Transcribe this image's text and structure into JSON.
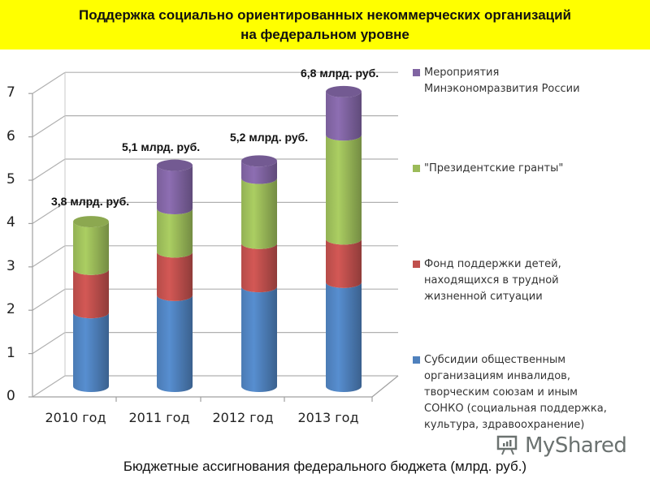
{
  "header": {
    "title_line1": "Поддержка социально ориентированных некоммерческих организаций",
    "title_line2": "на федеральном уровне",
    "background": "#ffff00"
  },
  "footer": {
    "caption": "Бюджетные ассигнования федерального бюджета (млрд. руб.)"
  },
  "watermark": {
    "text": "MyShared",
    "icon": "presentation-board-icon"
  },
  "legend": {
    "items": [
      {
        "label": "Мероприятия Минэкономразвития России",
        "color": "#8064a2"
      },
      {
        "label": "\"Президентские гранты\"",
        "color": "#9bbb59"
      },
      {
        "label": "Фонд поддержки детей, находящихся в трудной жизненной ситуации",
        "color": "#c0504d"
      },
      {
        "label": "Субсидии общественным организациям инвалидов, творческим союзам и иным СОНКО (социальная поддержка, культура, здравоохранение)",
        "color": "#4f81bd"
      }
    ]
  },
  "totals": [
    "3,8 млрд. руб.",
    "5,1 млрд. руб.",
    "5,2 млрд. руб.",
    "6,8 млрд. руб."
  ],
  "chart_data": {
    "type": "bar",
    "stacked": true,
    "style": "3d-cylinder",
    "title": "Поддержка социально ориентированных некоммерческих организаций на федеральном уровне",
    "xlabel": "",
    "ylabel": "",
    "caption": "Бюджетные ассигнования федерального бюджета (млрд. руб.)",
    "categories": [
      "2010 год",
      "2011 год",
      "2012 год",
      "2013 год"
    ],
    "series": [
      {
        "name": "Субсидии общественным организациям инвалидов, творческим союзам и иным СОНКО (социальная поддержка, культура, здравоохранение)",
        "color": "#4f81bd",
        "values": [
          1.7,
          2.1,
          2.3,
          2.4
        ]
      },
      {
        "name": "Фонд поддержки детей, находящихся в трудной жизненной ситуации",
        "color": "#c0504d",
        "values": [
          1.0,
          1.0,
          1.0,
          1.0
        ]
      },
      {
        "name": "\"Президентские гранты\"",
        "color": "#9bbb59",
        "values": [
          1.1,
          1.0,
          1.5,
          2.4
        ]
      },
      {
        "name": "Мероприятия Минэкономразвития России",
        "color": "#8064a2",
        "values": [
          0.0,
          1.0,
          0.4,
          1.0
        ]
      }
    ],
    "totals": [
      3.8,
      5.1,
      5.2,
      6.8
    ],
    "annotations": [
      "3,8 млрд. руб.",
      "5,1 млрд. руб.",
      "5,2 млрд. руб.",
      "6,8 млрд. руб."
    ],
    "yticks": [
      0,
      1,
      2,
      3,
      4,
      5,
      6,
      7
    ],
    "ylim": [
      0,
      7
    ],
    "grid": true,
    "legend_position": "right"
  }
}
